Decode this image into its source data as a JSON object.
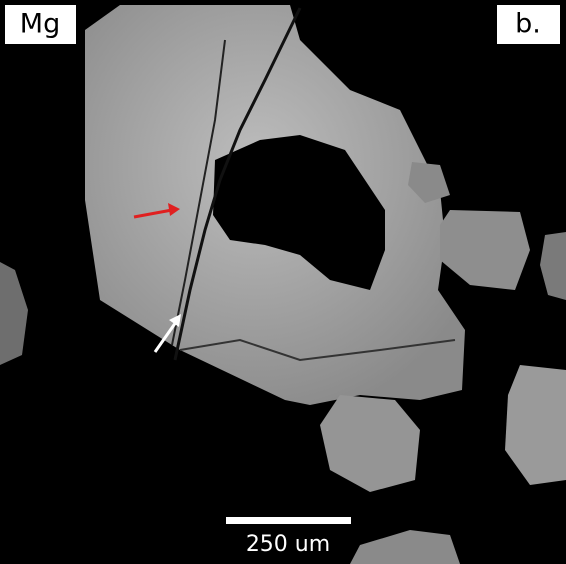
{
  "element_label": "Mg",
  "panel_label": "b.",
  "scale_bar_label": "250 um"
}
